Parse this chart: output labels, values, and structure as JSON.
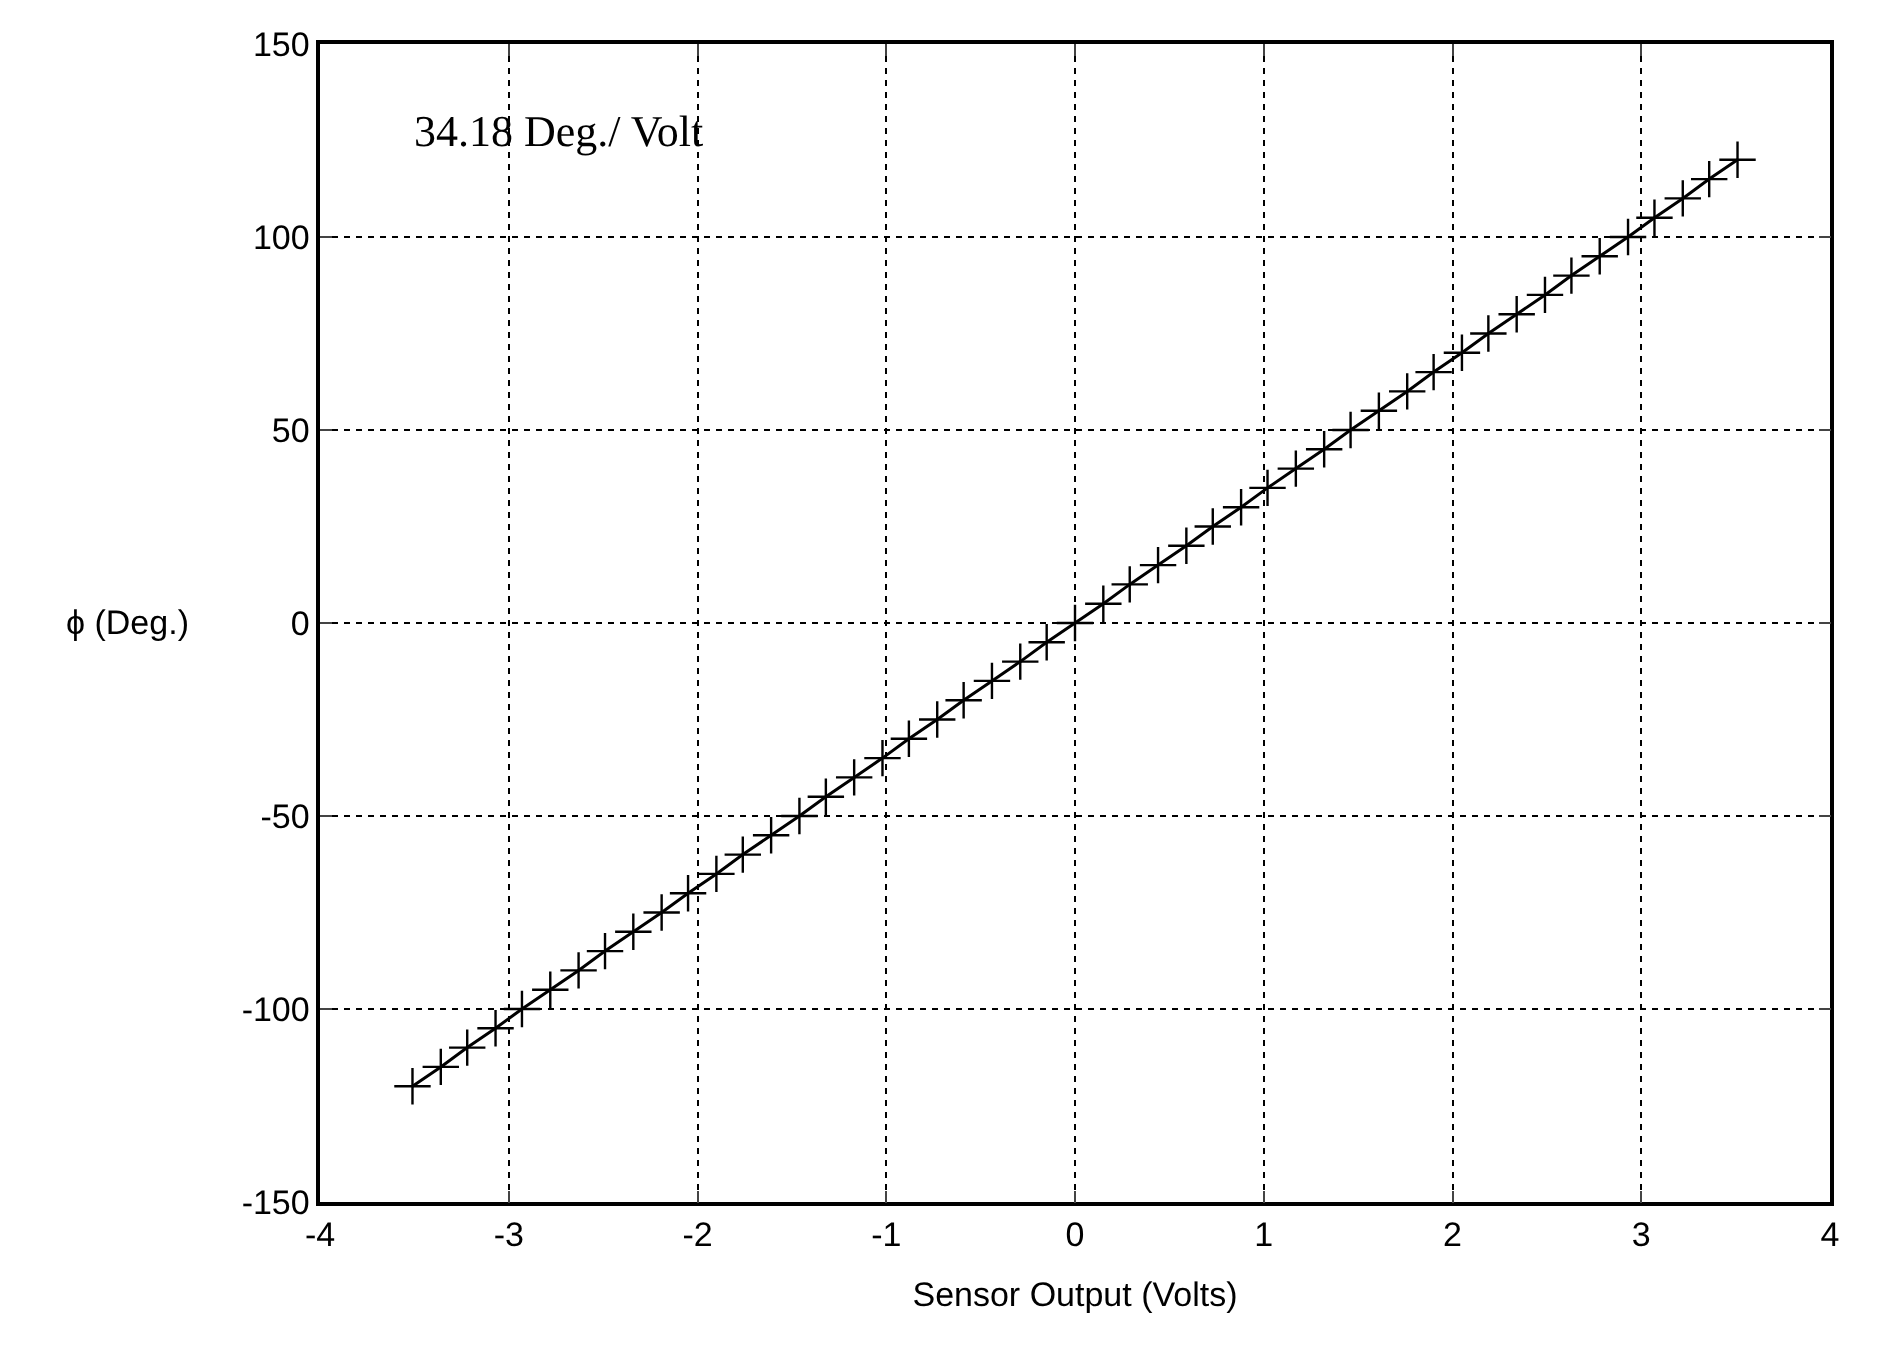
{
  "chart_data": {
    "type": "line",
    "xlabel": "Sensor Output (Volts)",
    "ylabel": "ϕ (Deg.)",
    "annotations": [
      "34.18 Deg./ Volt"
    ],
    "x": [
      -3.51,
      -3.36,
      -3.22,
      -3.07,
      -2.93,
      -2.78,
      -2.63,
      -2.49,
      -2.34,
      -2.19,
      -2.05,
      -1.9,
      -1.76,
      -1.61,
      -1.46,
      -1.32,
      -1.17,
      -1.02,
      -0.88,
      -0.73,
      -0.59,
      -0.44,
      -0.29,
      -0.15,
      0,
      0.15,
      0.29,
      0.44,
      0.59,
      0.73,
      0.88,
      1.02,
      1.17,
      1.32,
      1.46,
      1.61,
      1.76,
      1.9,
      2.05,
      2.19,
      2.34,
      2.49,
      2.63,
      2.78,
      2.93,
      3.07,
      3.22,
      3.36,
      3.51
    ],
    "series": [
      {
        "color": "#000000",
        "values": [
          -120,
          -115,
          -110,
          -105,
          -100,
          -95,
          -90,
          -85,
          -80,
          -75,
          -70,
          -65,
          -60,
          -55,
          -50,
          -45,
          -40,
          -35,
          -30,
          -25,
          -20,
          -15,
          -10,
          -5,
          0,
          5,
          10,
          15,
          20,
          25,
          30,
          35,
          40,
          45,
          50,
          55,
          60,
          65,
          70,
          75,
          80,
          85,
          90,
          95,
          100,
          105,
          110,
          115,
          120
        ]
      }
    ],
    "xlim": [
      -4,
      4
    ],
    "xticks": [
      -4,
      -3,
      -2,
      -1,
      0,
      1,
      2,
      3,
      4
    ],
    "ylim": [
      -150,
      150
    ],
    "yticks": [
      -150,
      -100,
      -50,
      0,
      50,
      100,
      150
    ],
    "grid": true,
    "marker": "cross",
    "line_style": "solid"
  }
}
